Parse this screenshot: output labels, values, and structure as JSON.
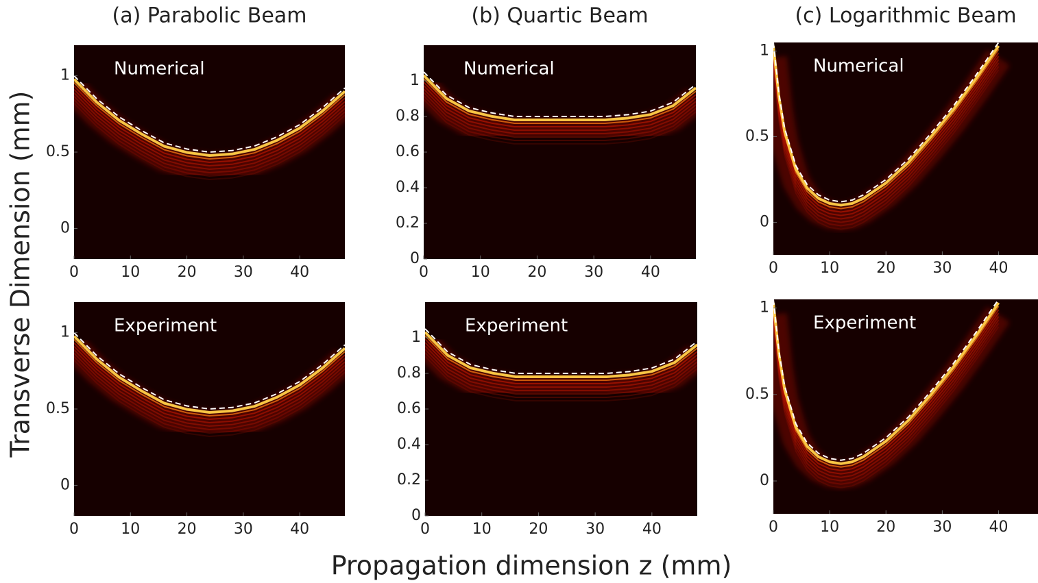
{
  "figure": {
    "xlabel": "Propagation dimension z (mm)",
    "ylabel": "Transverse Dimension (mm)"
  },
  "chart_data": [
    {
      "type": "line",
      "title": "(a) Parabolic Beam",
      "annotation": "Numerical",
      "color": "#ffffff",
      "line_style": "dashed",
      "background": "#160000",
      "x": [
        0,
        4,
        8,
        12,
        16,
        20,
        24,
        28,
        32,
        36,
        40,
        44,
        48
      ],
      "values": [
        1.0,
        0.85,
        0.73,
        0.64,
        0.56,
        0.52,
        0.5,
        0.51,
        0.54,
        0.6,
        0.68,
        0.79,
        0.92
      ],
      "xlim": [
        0,
        48
      ],
      "ylim": [
        -0.2,
        1.2
      ],
      "xticks": [
        0,
        10,
        20,
        30,
        40
      ],
      "yticks": [
        0,
        0.5,
        1
      ]
    },
    {
      "type": "line",
      "title": "(b) Quartic Beam",
      "annotation": "Numerical",
      "color": "#ffffff",
      "line_style": "dashed",
      "background": "#160000",
      "x": [
        0,
        4,
        8,
        12,
        16,
        20,
        24,
        28,
        32,
        36,
        40,
        44,
        48
      ],
      "values": [
        1.05,
        0.92,
        0.85,
        0.82,
        0.8,
        0.8,
        0.8,
        0.8,
        0.8,
        0.81,
        0.83,
        0.88,
        0.98
      ],
      "xlim": [
        0,
        48
      ],
      "ylim": [
        0,
        1.2
      ],
      "xticks": [
        0,
        10,
        20,
        30,
        40
      ],
      "yticks": [
        0,
        0.2,
        0.4,
        0.6,
        0.8,
        1
      ]
    },
    {
      "type": "line",
      "title": "(c) Logarithmic Beam",
      "annotation": "Numerical",
      "color": "#ffffff",
      "line_style": "dashed",
      "background": "#160000",
      "x": [
        0,
        1,
        2,
        4,
        6,
        8,
        10,
        12,
        14,
        16,
        20,
        24,
        28,
        32,
        36,
        40
      ],
      "values": [
        1.05,
        0.75,
        0.55,
        0.33,
        0.22,
        0.16,
        0.13,
        0.12,
        0.13,
        0.16,
        0.25,
        0.37,
        0.52,
        0.68,
        0.86,
        1.05
      ],
      "xlim": [
        0,
        47
      ],
      "ylim": [
        -0.19,
        1.05
      ],
      "xticks": [
        0,
        10,
        20,
        30,
        40
      ],
      "yticks": [
        0,
        0.5,
        1
      ]
    },
    {
      "type": "line",
      "annotation": "Experiment",
      "color": "#ffffff",
      "line_style": "dashed",
      "background": "#160000",
      "x": [
        0,
        4,
        8,
        12,
        16,
        20,
        24,
        28,
        32,
        36,
        40,
        44,
        48
      ],
      "values": [
        1.0,
        0.85,
        0.73,
        0.64,
        0.56,
        0.52,
        0.5,
        0.51,
        0.54,
        0.6,
        0.68,
        0.79,
        0.92
      ],
      "xlim": [
        0,
        48
      ],
      "ylim": [
        -0.2,
        1.2
      ],
      "xticks": [
        0,
        10,
        20,
        30,
        40
      ],
      "yticks": [
        0,
        0.5,
        1
      ]
    },
    {
      "type": "line",
      "annotation": "Experiment",
      "color": "#ffffff",
      "line_style": "dashed",
      "background": "#160000",
      "x": [
        0,
        4,
        8,
        12,
        16,
        20,
        24,
        28,
        32,
        36,
        40,
        44,
        48
      ],
      "values": [
        1.05,
        0.92,
        0.85,
        0.82,
        0.8,
        0.8,
        0.8,
        0.8,
        0.8,
        0.81,
        0.83,
        0.88,
        0.98
      ],
      "xlim": [
        0,
        48
      ],
      "ylim": [
        0,
        1.2
      ],
      "xticks": [
        0,
        10,
        20,
        30,
        40
      ],
      "yticks": [
        0,
        0.2,
        0.4,
        0.6,
        0.8,
        1
      ]
    },
    {
      "type": "line",
      "annotation": "Experiment",
      "color": "#ffffff",
      "line_style": "dashed",
      "background": "#160000",
      "x": [
        0,
        1,
        2,
        4,
        6,
        8,
        10,
        12,
        14,
        16,
        20,
        24,
        28,
        32,
        36,
        40
      ],
      "values": [
        1.05,
        0.75,
        0.55,
        0.33,
        0.22,
        0.16,
        0.13,
        0.12,
        0.13,
        0.16,
        0.25,
        0.37,
        0.52,
        0.68,
        0.86,
        1.05
      ],
      "xlim": [
        0,
        47
      ],
      "ylim": [
        -0.19,
        1.05
      ],
      "xticks": [
        0,
        10,
        20,
        30,
        40
      ],
      "yticks": [
        0,
        0.5,
        1
      ]
    }
  ]
}
